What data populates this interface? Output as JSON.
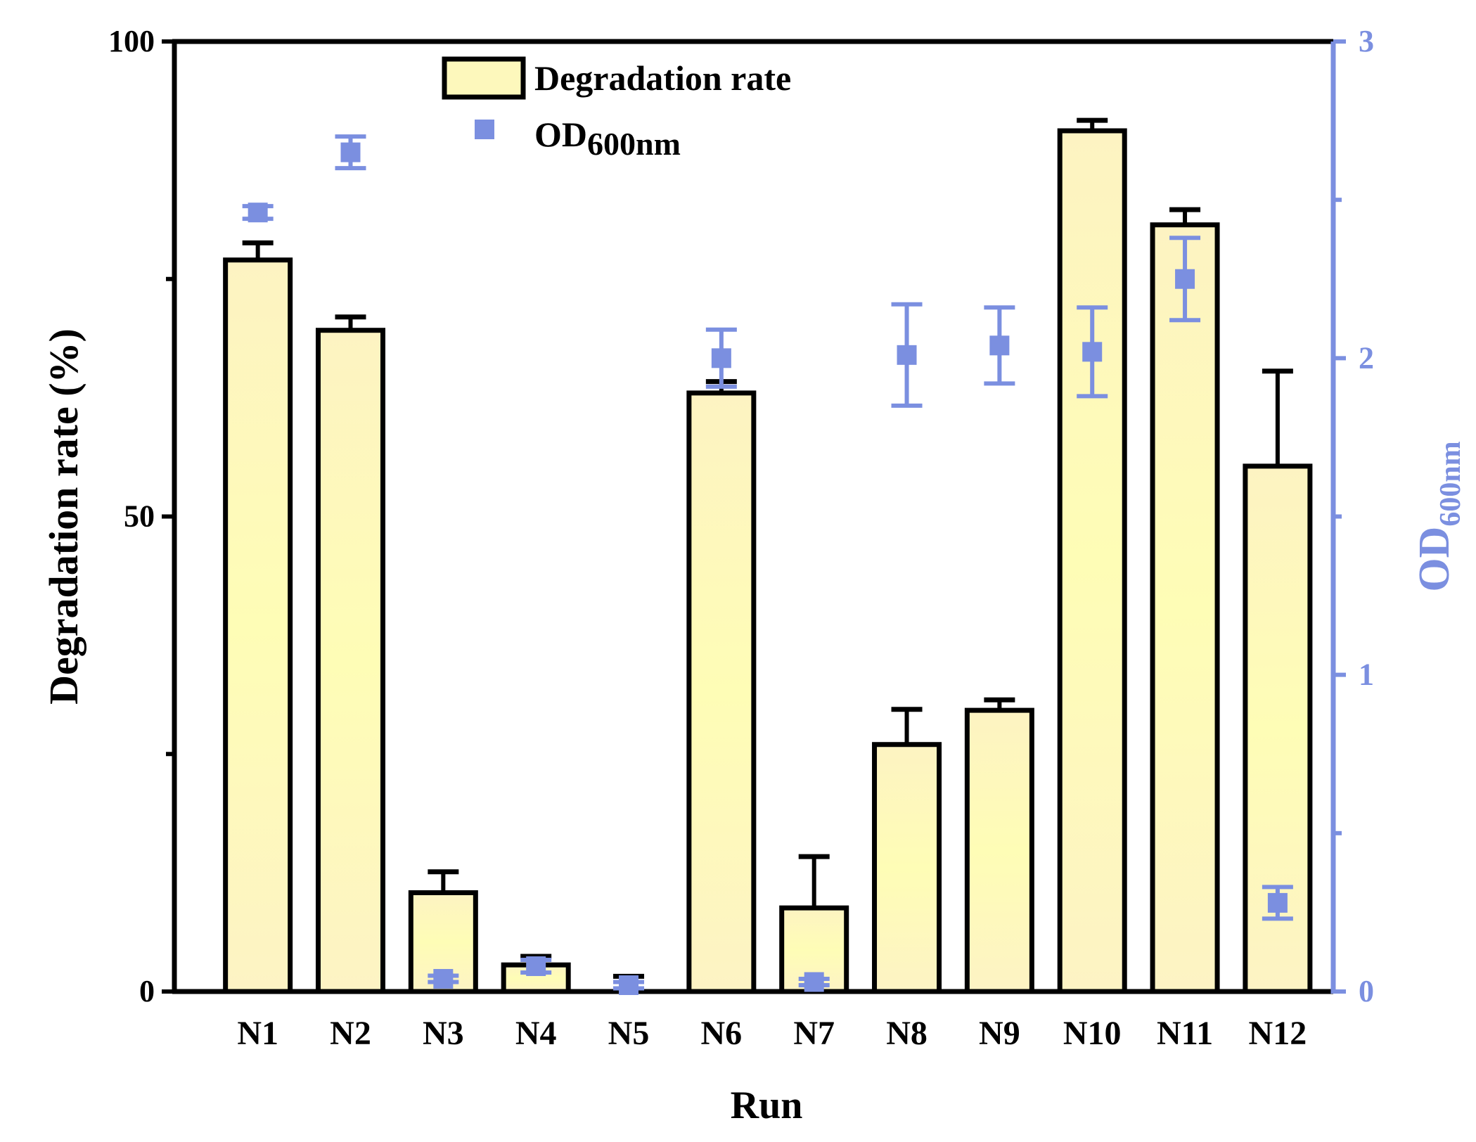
{
  "chart_data": {
    "type": "bar",
    "title": "",
    "xlabel": "Run",
    "ylabel": "Degradation rate (%)",
    "y2label": {
      "main": "OD",
      "sub": "600nm"
    },
    "categories": [
      "N1",
      "N2",
      "N3",
      "N4",
      "N5",
      "N6",
      "N7",
      "N8",
      "N9",
      "N10",
      "N11",
      "N12"
    ],
    "ylim": [
      0,
      100
    ],
    "y2lim": [
      0,
      3
    ],
    "yticks": [
      0,
      50,
      100
    ],
    "y2ticks": [
      0,
      1,
      2,
      3
    ],
    "series": [
      {
        "name": "Degradation rate",
        "kind": "bar",
        "values": [
          77,
          69.6,
          10.4,
          2.8,
          0,
          63,
          8.8,
          26,
          29.6,
          90.6,
          80.7,
          55.3
        ],
        "errors": [
          1.8,
          1.4,
          2.2,
          0.9,
          1.6,
          1.2,
          5.4,
          3.7,
          1.1,
          1.1,
          1.6,
          10.0
        ]
      },
      {
        "name": "OD",
        "name_sub": "600nm",
        "kind": "scatter",
        "axis": "right",
        "values": [
          2.46,
          2.65,
          0.04,
          0.08,
          0.02,
          2.0,
          0.03,
          2.01,
          2.04,
          2.02,
          2.25,
          0.28
        ],
        "errors": [
          0.02,
          0.05,
          0.01,
          0.02,
          0.01,
          0.09,
          0.01,
          0.16,
          0.12,
          0.14,
          0.13,
          0.05
        ]
      }
    ],
    "colors": {
      "bar_fill": "#fdf8b8",
      "bar_stroke": "#000000",
      "od": "#7b8fe0",
      "axis": "#000000"
    },
    "legend_position": "top-center",
    "grid": false
  }
}
